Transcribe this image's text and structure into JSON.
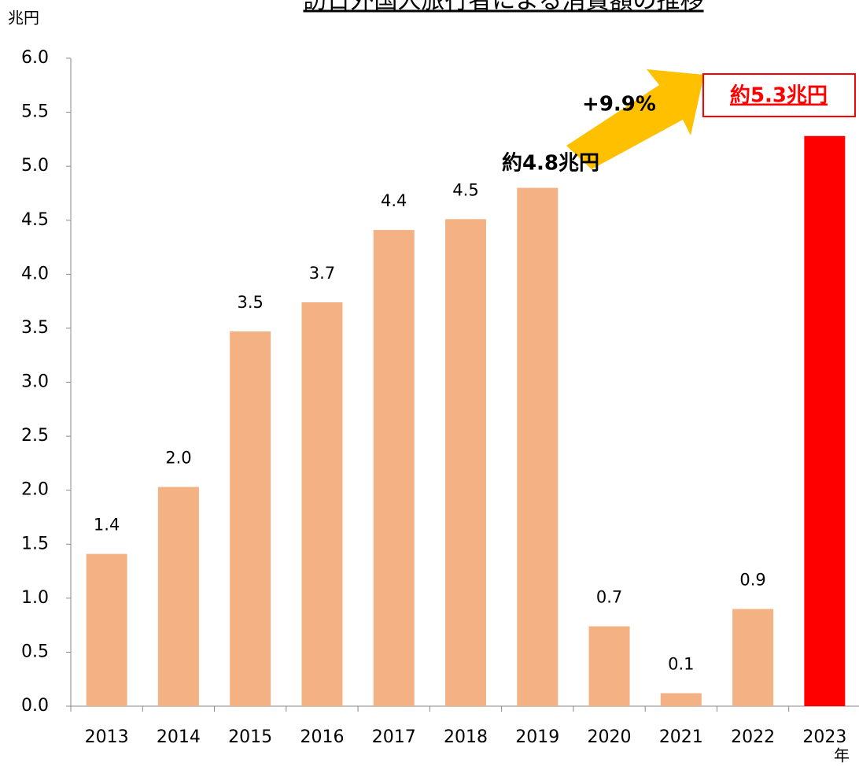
{
  "chart_data": {
    "type": "bar",
    "title": "訪日外国人旅行者による消費額の推移",
    "y_label": "兆円",
    "x_label": "年",
    "categories": [
      "2013",
      "2014",
      "2015",
      "2016",
      "2017",
      "2018",
      "2019",
      "2020",
      "2021",
      "2022",
      "2023"
    ],
    "values": [
      1.41,
      2.03,
      3.47,
      3.74,
      4.41,
      4.51,
      4.8,
      0.74,
      0.12,
      0.9,
      5.28
    ],
    "value_labels": [
      "1.4",
      "2.0",
      "3.5",
      "3.7",
      "4.4",
      "4.5",
      null,
      "0.7",
      "0.1",
      "0.9",
      null
    ],
    "colors": [
      "#f4b183",
      "#f4b183",
      "#f4b183",
      "#f4b183",
      "#f4b183",
      "#f4b183",
      "#f4b183",
      "#f4b183",
      "#f4b183",
      "#f4b183",
      "#ff0000"
    ],
    "ylim": [
      0,
      6
    ],
    "yticks": [
      {
        "value": 0,
        "label": "0.0"
      },
      0.5,
      {
        "value": 1,
        "label": "1.0"
      },
      1.5,
      {
        "value": 2,
        "label": "2.0"
      },
      2.5,
      {
        "value": 3,
        "label": "3.0"
      },
      3.5,
      {
        "value": 4,
        "label": "4.0"
      },
      4.5,
      {
        "value": 5,
        "label": "5.0"
      },
      5.5,
      {
        "value": 6,
        "label": "6.0"
      }
    ],
    "grid": false,
    "annotations": [
      "約4.8兆円",
      "+9.9%",
      "約5.3兆円"
    ]
  }
}
